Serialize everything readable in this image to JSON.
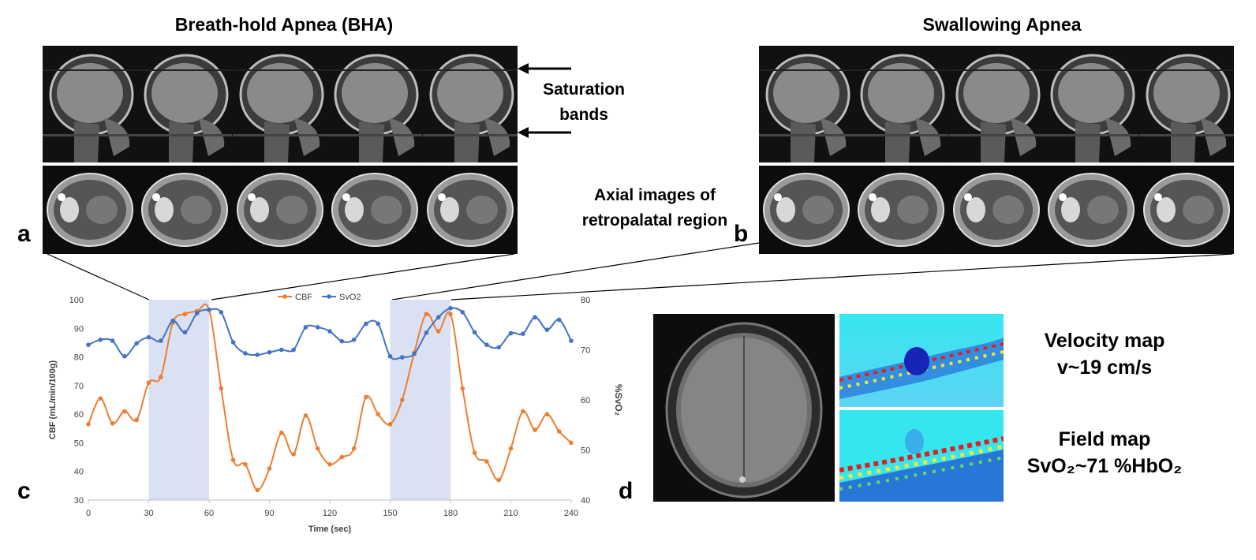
{
  "panels": {
    "a": {
      "letter": "a",
      "title": "Breath-hold Apnea (BHA)"
    },
    "b": {
      "letter": "b",
      "title": "Swallowing Apnea"
    },
    "c": {
      "letter": "c"
    },
    "d": {
      "letter": "d"
    }
  },
  "annotations": {
    "saturation_line1": "Saturation",
    "saturation_line2": "bands",
    "axial_line1": "Axial images of",
    "axial_line2": "retropalatal region"
  },
  "maps": {
    "velocity_line1": "Velocity map",
    "velocity_line2": "v~19 cm/s",
    "field_line1": "Field map",
    "field_line2": "SvO₂~71 %HbO₂"
  },
  "colors": {
    "cbf": "#ED7D31",
    "svo2": "#4472C4",
    "shade": "#DAE1F2"
  },
  "chart_data": {
    "type": "line",
    "xlabel": "Time (sec)",
    "ylabel": "CBF (mL/min/100g)",
    "y2label": "%SvO₂",
    "xlim": [
      0,
      240
    ],
    "xticks": [
      0,
      30,
      60,
      90,
      120,
      150,
      180,
      210,
      240
    ],
    "ylim": [
      30,
      100
    ],
    "yticks": [
      30,
      40,
      50,
      60,
      70,
      80,
      90,
      100
    ],
    "y2lim": [
      40,
      80
    ],
    "y2ticks": [
      40,
      50,
      60,
      70,
      80
    ],
    "shaded_intervals": [
      [
        30,
        60
      ],
      [
        150,
        180
      ]
    ],
    "legend_position": "top-center",
    "series": [
      {
        "name": "CBF",
        "axis": "left",
        "x": [
          0,
          6,
          12,
          18,
          24,
          30,
          36,
          42,
          48,
          54,
          60,
          66,
          72,
          78,
          84,
          90,
          96,
          102,
          108,
          114,
          120,
          126,
          132,
          138,
          144,
          150,
          156,
          162,
          168,
          174,
          180,
          186,
          192,
          198,
          204,
          210,
          216,
          222,
          228,
          234,
          240
        ],
        "y": [
          56.5,
          65.5,
          56.8,
          61,
          58,
          71,
          73,
          92,
          95,
          96,
          96.5,
          69,
          44,
          42.5,
          33.5,
          41,
          53.5,
          46,
          59.5,
          48,
          42.5,
          45,
          48,
          66,
          60,
          56.5,
          65,
          81.5,
          95,
          89,
          95,
          69,
          46.5,
          43.5,
          37,
          48,
          61,
          54.5,
          60,
          54,
          50
        ]
      },
      {
        "name": "SvO2",
        "axis": "right",
        "x": [
          0,
          6,
          12,
          18,
          24,
          30,
          36,
          42,
          48,
          54,
          60,
          66,
          72,
          78,
          84,
          90,
          96,
          102,
          108,
          114,
          120,
          126,
          132,
          138,
          144,
          150,
          156,
          162,
          168,
          174,
          180,
          186,
          192,
          198,
          204,
          210,
          216,
          222,
          228,
          234,
          240
        ],
        "y": [
          71,
          72,
          71.8,
          68.7,
          71.3,
          72.5,
          71.8,
          75.8,
          73.5,
          77.3,
          78,
          77.5,
          71.5,
          69.3,
          69,
          69.5,
          70,
          70,
          74.5,
          74.5,
          73.7,
          71.7,
          72,
          75.2,
          75.2,
          68.7,
          68.5,
          69.2,
          73.4,
          76.5,
          78.3,
          77.5,
          73.5,
          71,
          70.5,
          73.3,
          73.2,
          76.5,
          74,
          76,
          71.8
        ]
      }
    ]
  }
}
